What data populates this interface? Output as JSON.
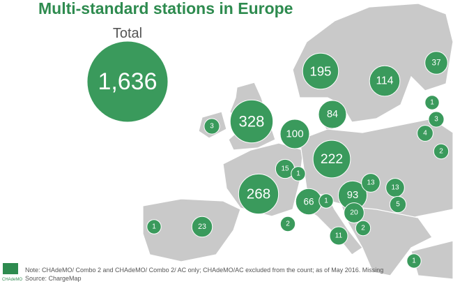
{
  "title": "Multi-standard stations in Europe",
  "total": {
    "label": "Total",
    "value": 1636,
    "value_label": "1,636"
  },
  "bubbles": [
    {
      "value": 328
    },
    {
      "value": 195
    },
    {
      "value": 114
    },
    {
      "value": 37
    },
    {
      "value": 84
    },
    {
      "value": 100
    },
    {
      "value": 3
    },
    {
      "value": 222
    },
    {
      "value": 15
    },
    {
      "value": 1
    },
    {
      "value": 268
    },
    {
      "value": 66
    },
    {
      "value": 1
    },
    {
      "value": 93
    },
    {
      "value": 13
    },
    {
      "value": 13
    },
    {
      "value": 5
    },
    {
      "value": 20
    },
    {
      "value": 2
    },
    {
      "value": 2
    },
    {
      "value": 11
    },
    {
      "value": 1
    },
    {
      "value": 23
    },
    {
      "value": 1
    },
    {
      "value": 3
    },
    {
      "value": 4
    },
    {
      "value": 2
    },
    {
      "value": 1
    }
  ],
  "footer": {
    "logo": "CHAdeMO",
    "note": "Note: CHAdeMO/ Combo 2 and CHAdeMO/ Combo 2/ AC only; CHAdeMO/AC excluded from the count; as of May 2016. Missing",
    "source": "Source:  ChargeMap"
  }
}
